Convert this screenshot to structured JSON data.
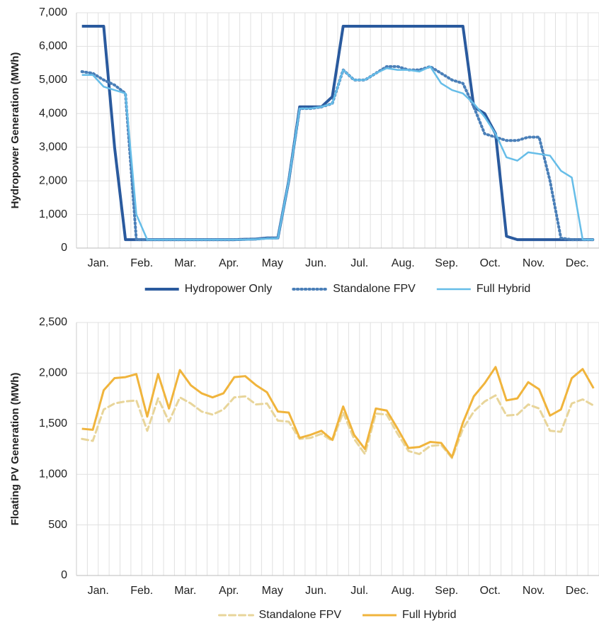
{
  "chart_data": [
    {
      "type": "line",
      "y_label": "Hydropower Generation (MWh)",
      "categories": [
        null,
        "Jan.",
        null,
        null,
        null,
        "Feb.",
        null,
        null,
        null,
        "Mar.",
        null,
        null,
        null,
        "Apr.",
        null,
        null,
        null,
        "May",
        null,
        null,
        null,
        "Jun.",
        null,
        null,
        null,
        "Jul.",
        null,
        null,
        null,
        "Aug.",
        null,
        null,
        null,
        "Sep.",
        null,
        null,
        null,
        "Oct.",
        null,
        null,
        null,
        "Nov.",
        null,
        null,
        null,
        "Dec.",
        null,
        null
      ],
      "ylim": [
        0,
        7000
      ],
      "yticks": [
        0,
        {
          "value": 1000,
          "label": "1,000"
        },
        {
          "value": 2000,
          "label": "2,000"
        },
        {
          "value": 3000,
          "label": "3,000"
        },
        {
          "value": 4000,
          "label": "4,000"
        },
        {
          "value": 5000,
          "label": "5,000"
        },
        {
          "value": 6000,
          "label": "6,000"
        },
        {
          "value": 7000,
          "label": "7,000"
        }
      ],
      "grid": true,
      "series": [
        {
          "name": "Hydropower Only",
          "color": "#2a5a9e",
          "style": "solid",
          "width": 4,
          "values": [
            6600,
            6600,
            6600,
            3000,
            250,
            250,
            250,
            250,
            250,
            250,
            250,
            250,
            250,
            250,
            250,
            260,
            270,
            300,
            300,
            2000,
            4200,
            4200,
            4200,
            4500,
            6600,
            6600,
            6600,
            6600,
            6600,
            6600,
            6600,
            6600,
            6600,
            6600,
            6600,
            6600,
            4200,
            4000,
            3400,
            350,
            250,
            250,
            250,
            250,
            250,
            250,
            250,
            250
          ]
        },
        {
          "name": "Standalone FPV",
          "color": "#4a7fb8",
          "style": "dotted",
          "width": 4,
          "values": [
            5250,
            5200,
            5000,
            4850,
            4600,
            250,
            250,
            250,
            250,
            250,
            250,
            250,
            250,
            250,
            250,
            260,
            270,
            300,
            300,
            2000,
            4150,
            4150,
            4200,
            4300,
            5300,
            5000,
            5000,
            5200,
            5400,
            5400,
            5300,
            5300,
            5400,
            5200,
            5000,
            4900,
            4200,
            3400,
            3300,
            3200,
            3200,
            3300,
            3300,
            2000,
            300,
            250,
            250,
            250
          ]
        },
        {
          "name": "Full Hybrid",
          "color": "#66bde8",
          "style": "solid",
          "width": 2.5,
          "values": [
            5150,
            5150,
            4800,
            4700,
            4600,
            1000,
            250,
            250,
            250,
            250,
            250,
            250,
            250,
            250,
            250,
            250,
            260,
            280,
            290,
            2000,
            4150,
            4150,
            4200,
            4300,
            5300,
            5000,
            5000,
            5200,
            5350,
            5300,
            5300,
            5250,
            5400,
            4900,
            4700,
            4600,
            4300,
            3900,
            3400,
            2700,
            2600,
            2850,
            2800,
            2750,
            2300,
            2100,
            250,
            250
          ]
        }
      ]
    },
    {
      "type": "line",
      "y_label": "Floating PV Generation (MWh)",
      "categories": [
        null,
        "Jan.",
        null,
        null,
        null,
        "Feb.",
        null,
        null,
        null,
        "Mar.",
        null,
        null,
        null,
        "Apr.",
        null,
        null,
        null,
        "May",
        null,
        null,
        null,
        "Jun.",
        null,
        null,
        null,
        "Jul.",
        null,
        null,
        null,
        "Aug.",
        null,
        null,
        null,
        "Sep.",
        null,
        null,
        null,
        "Oct.",
        null,
        null,
        null,
        "Nov.",
        null,
        null,
        null,
        "Dec.",
        null,
        null
      ],
      "ylim": [
        0,
        2500
      ],
      "yticks": [
        0,
        500,
        {
          "value": 1000,
          "label": "1,000"
        },
        {
          "value": 1500,
          "label": "1,500"
        },
        {
          "value": 2000,
          "label": "2,000"
        },
        {
          "value": 2500,
          "label": "2,500"
        }
      ],
      "grid": true,
      "series": [
        {
          "name": "Standalone FPV",
          "color": "#e8d59a",
          "style": "dashed",
          "width": 3,
          "values": [
            1350,
            1330,
            1640,
            1700,
            1720,
            1730,
            1430,
            1750,
            1520,
            1760,
            1700,
            1620,
            1590,
            1640,
            1760,
            1770,
            1690,
            1700,
            1530,
            1520,
            1350,
            1360,
            1400,
            1330,
            1610,
            1350,
            1200,
            1600,
            1590,
            1400,
            1230,
            1200,
            1280,
            1290,
            1160,
            1450,
            1620,
            1720,
            1780,
            1580,
            1590,
            1690,
            1650,
            1430,
            1420,
            1700,
            1740,
            1680
          ]
        },
        {
          "name": "Full Hybrid",
          "color": "#f0b43c",
          "style": "solid",
          "width": 3,
          "values": [
            1450,
            1440,
            1830,
            1950,
            1960,
            1990,
            1570,
            1990,
            1650,
            2030,
            1880,
            1800,
            1760,
            1800,
            1960,
            1970,
            1880,
            1810,
            1620,
            1610,
            1360,
            1390,
            1430,
            1340,
            1670,
            1390,
            1250,
            1650,
            1630,
            1450,
            1260,
            1270,
            1320,
            1310,
            1170,
            1510,
            1770,
            1900,
            2060,
            1730,
            1750,
            1910,
            1840,
            1580,
            1640,
            1950,
            2040,
            1850
          ]
        }
      ]
    }
  ]
}
